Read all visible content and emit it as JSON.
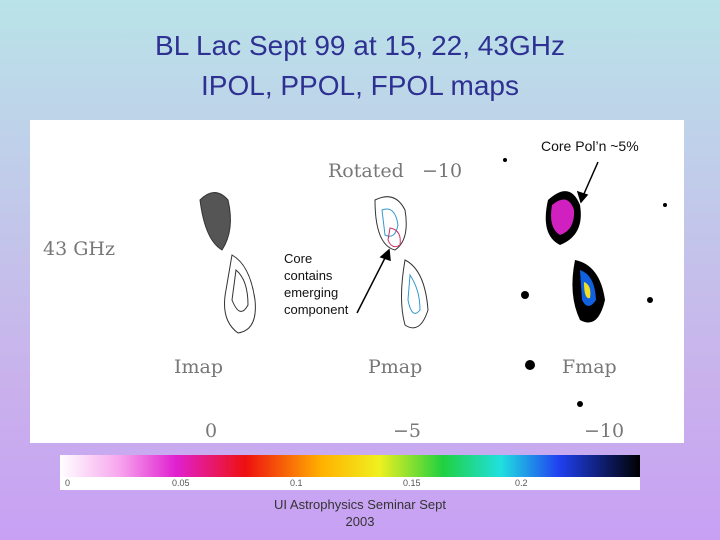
{
  "title": {
    "lines": [
      "BL Lac Sept 99 at 15, 22, 43GHz",
      "IPOL, PPOL, FPOL maps"
    ]
  },
  "figure": {
    "rotation_label": "Rotated",
    "rotation_value": "−10",
    "frequency_label": "43 GHz",
    "panels": [
      "Imap",
      "Pmap",
      "Fmap"
    ],
    "axis_ticks": [
      "0",
      "−5",
      "−10"
    ],
    "annotations": {
      "core_polarization": "Core Pol’n ~5%",
      "core_component": "Core contains emerging component"
    },
    "colorbar_ticks": [
      "0",
      "0.05",
      "0.1",
      "0.15",
      "0.2"
    ]
  },
  "footer": {
    "text": "UI Astrophysics Seminar Sept 2003"
  }
}
